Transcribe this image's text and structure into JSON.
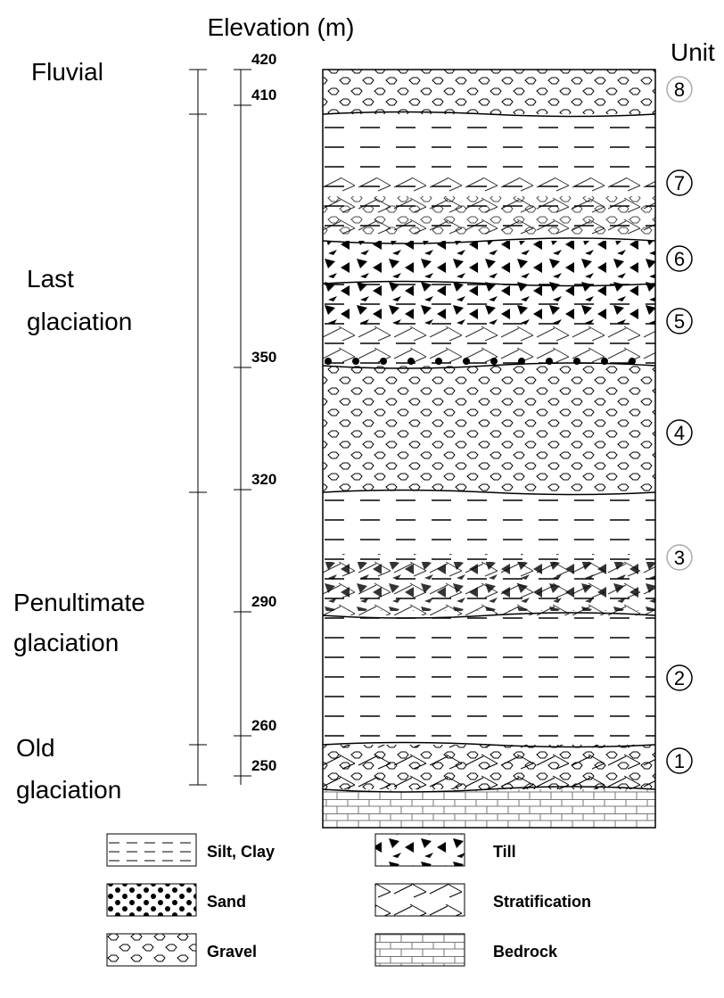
{
  "header": {
    "elevation_title": "Elevation (m)",
    "unit_title": "Unit"
  },
  "elevations": [
    420,
    410,
    350,
    320,
    290,
    260,
    250
  ],
  "periods": [
    {
      "lines": [
        "Fluvial"
      ]
    },
    {
      "lines": [
        "Last",
        "glaciation"
      ]
    },
    {
      "lines": [
        "Penultimate",
        "glaciation"
      ]
    },
    {
      "lines": [
        "Old",
        "glaciation"
      ]
    }
  ],
  "units": [
    "8",
    "7",
    "6",
    "5",
    "4",
    "3",
    "2",
    "1"
  ],
  "legend": [
    "Silt, Clay",
    "Till",
    "Sand",
    "Stratification",
    "Gravel",
    "Bedrock"
  ]
}
